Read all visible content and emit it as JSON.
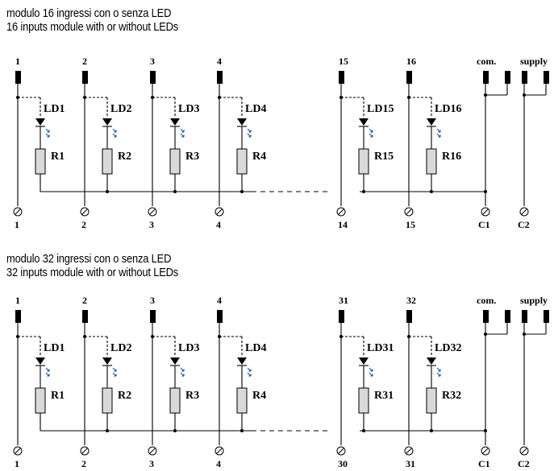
{
  "sections": [
    {
      "title_it": "modulo 16 ingressi con o senza LED",
      "title_en": "16 inputs module with or without LEDs",
      "channels": [
        {
          "top": "1",
          "led": "LD1",
          "res": "R1",
          "bottom": "1"
        },
        {
          "top": "2",
          "led": "LD2",
          "res": "R2",
          "bottom": "2"
        },
        {
          "top": "3",
          "led": "LD3",
          "res": "R3",
          "bottom": "3"
        },
        {
          "top": "4",
          "led": "LD4",
          "res": "R4",
          "bottom": "4"
        },
        {
          "top": "15",
          "led": "LD15",
          "res": "R15",
          "bottom": "14"
        },
        {
          "top": "16",
          "led": "LD16",
          "res": "R16",
          "bottom": "15"
        }
      ],
      "com": {
        "top": "com.",
        "bottom": "C1"
      },
      "supply": {
        "top": "supply",
        "bottom": "C2"
      }
    },
    {
      "title_it": "modulo 32 ingressi con o senza LED",
      "title_en": "32 inputs module with or without LEDs",
      "channels": [
        {
          "top": "1",
          "led": "LD1",
          "res": "R1",
          "bottom": "1"
        },
        {
          "top": "2",
          "led": "LD2",
          "res": "R2",
          "bottom": "2"
        },
        {
          "top": "3",
          "led": "LD3",
          "res": "R3",
          "bottom": "3"
        },
        {
          "top": "4",
          "led": "LD4",
          "res": "R4",
          "bottom": "4"
        },
        {
          "top": "31",
          "led": "LD31",
          "res": "R31",
          "bottom": "30"
        },
        {
          "top": "32",
          "led": "LD32",
          "res": "R32",
          "bottom": "31"
        }
      ],
      "com": {
        "top": "com.",
        "bottom": "C1"
      },
      "supply": {
        "top": "supply",
        "bottom": "C2"
      }
    }
  ],
  "colors": {
    "led_arrows": "#1a5fb4",
    "resistor_fill": "#d9d9d9",
    "line": "#000000"
  }
}
